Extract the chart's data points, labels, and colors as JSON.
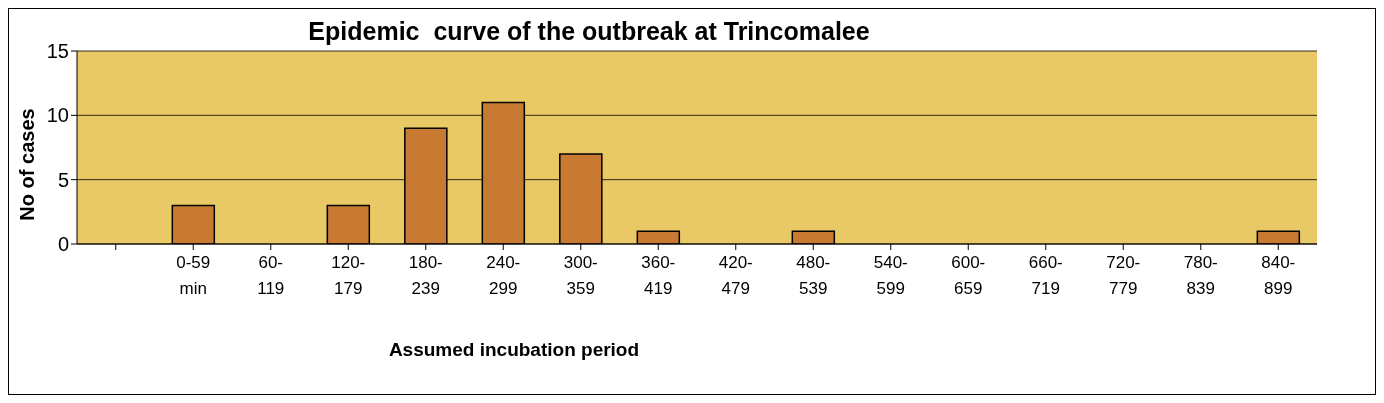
{
  "chart_data": {
    "type": "bar",
    "title": "Epidemic  curve of the outbreak at Trincomalee",
    "xlabel": "Assumed incubation period",
    "ylabel": "No of cases",
    "categories": [
      null,
      "0-59 min",
      "60-119",
      "120-179",
      "180-239",
      "240-299",
      "300-359",
      "360-419",
      "420-479",
      "480-539",
      "540-599",
      "600-659",
      "660-719",
      "720-779",
      "780-839",
      "840-899"
    ],
    "values": [
      0,
      3,
      0,
      3,
      9,
      11,
      7,
      1,
      0,
      1,
      0,
      0,
      0,
      0,
      0,
      1
    ],
    "color": "#c87a32",
    "ylim": [
      0,
      15
    ],
    "yticks": [
      0,
      5,
      10,
      15
    ],
    "grid": "y"
  }
}
